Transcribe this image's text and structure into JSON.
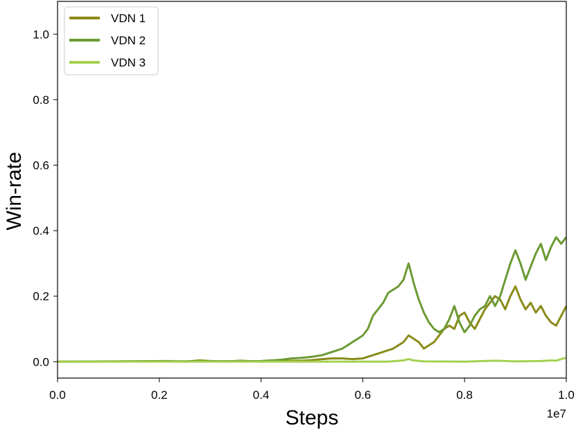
{
  "chart_data": {
    "type": "line",
    "title": "",
    "xlabel": "Steps",
    "ylabel": "Win-rate",
    "x_offset_text": "1e7",
    "xlim": [
      0.0,
      1.0
    ],
    "ylim": [
      -0.05,
      1.1
    ],
    "x_ticks": [
      "0.0",
      "0.2",
      "0.4",
      "0.6",
      "0.8",
      "1.0"
    ],
    "y_ticks": [
      "0.0",
      "0.2",
      "0.4",
      "0.6",
      "0.8",
      "1.0"
    ],
    "grid": false,
    "legend_position": "top-left",
    "series": [
      {
        "name": "VDN 1",
        "color": "#8a8a19",
        "x": [
          0.0,
          0.22,
          0.25,
          0.28,
          0.3,
          0.33,
          0.36,
          0.4,
          0.44,
          0.48,
          0.5,
          0.52,
          0.54,
          0.56,
          0.58,
          0.6,
          0.62,
          0.64,
          0.66,
          0.67,
          0.68,
          0.69,
          0.7,
          0.71,
          0.72,
          0.73,
          0.74,
          0.75,
          0.76,
          0.77,
          0.78,
          0.79,
          0.8,
          0.81,
          0.82,
          0.83,
          0.84,
          0.85,
          0.86,
          0.87,
          0.88,
          0.89,
          0.9,
          0.91,
          0.92,
          0.93,
          0.94,
          0.95,
          0.96,
          0.97,
          0.98,
          0.99,
          1.0
        ],
        "y": [
          0.0,
          0.002,
          0.0,
          0.004,
          0.002,
          0.0,
          0.003,
          0.0,
          0.002,
          0.003,
          0.005,
          0.008,
          0.01,
          0.01,
          0.008,
          0.01,
          0.02,
          0.03,
          0.04,
          0.05,
          0.06,
          0.08,
          0.07,
          0.06,
          0.04,
          0.05,
          0.06,
          0.08,
          0.1,
          0.11,
          0.1,
          0.14,
          0.15,
          0.12,
          0.1,
          0.13,
          0.16,
          0.18,
          0.2,
          0.19,
          0.16,
          0.2,
          0.23,
          0.19,
          0.16,
          0.18,
          0.15,
          0.17,
          0.14,
          0.12,
          0.11,
          0.14,
          0.17
        ]
      },
      {
        "name": "VDN 2",
        "color": "#6b9a33",
        "x": [
          0.0,
          0.4,
          0.44,
          0.46,
          0.48,
          0.5,
          0.52,
          0.54,
          0.56,
          0.58,
          0.6,
          0.61,
          0.62,
          0.63,
          0.64,
          0.65,
          0.66,
          0.67,
          0.68,
          0.69,
          0.7,
          0.71,
          0.72,
          0.73,
          0.74,
          0.75,
          0.76,
          0.77,
          0.78,
          0.79,
          0.8,
          0.81,
          0.82,
          0.83,
          0.84,
          0.85,
          0.86,
          0.87,
          0.88,
          0.89,
          0.9,
          0.91,
          0.92,
          0.93,
          0.94,
          0.95,
          0.96,
          0.97,
          0.98,
          0.99,
          1.0
        ],
        "y": [
          0.0,
          0.002,
          0.006,
          0.01,
          0.012,
          0.015,
          0.02,
          0.03,
          0.04,
          0.06,
          0.08,
          0.1,
          0.14,
          0.16,
          0.18,
          0.21,
          0.22,
          0.23,
          0.25,
          0.3,
          0.24,
          0.19,
          0.15,
          0.12,
          0.1,
          0.09,
          0.1,
          0.13,
          0.17,
          0.12,
          0.09,
          0.11,
          0.14,
          0.16,
          0.17,
          0.2,
          0.17,
          0.2,
          0.25,
          0.3,
          0.34,
          0.3,
          0.25,
          0.29,
          0.33,
          0.36,
          0.31,
          0.35,
          0.38,
          0.36,
          0.38
        ]
      },
      {
        "name": "VDN 3",
        "color": "#a3d151",
        "x": [
          0.0,
          0.6,
          0.65,
          0.68,
          0.69,
          0.7,
          0.72,
          0.8,
          0.86,
          0.9,
          0.95,
          0.97,
          0.98,
          0.99,
          1.0
        ],
        "y": [
          0.0,
          0.0,
          0.0,
          0.004,
          0.008,
          0.004,
          0.001,
          0.0,
          0.003,
          0.001,
          0.002,
          0.004,
          0.003,
          0.008,
          0.012
        ]
      }
    ]
  }
}
